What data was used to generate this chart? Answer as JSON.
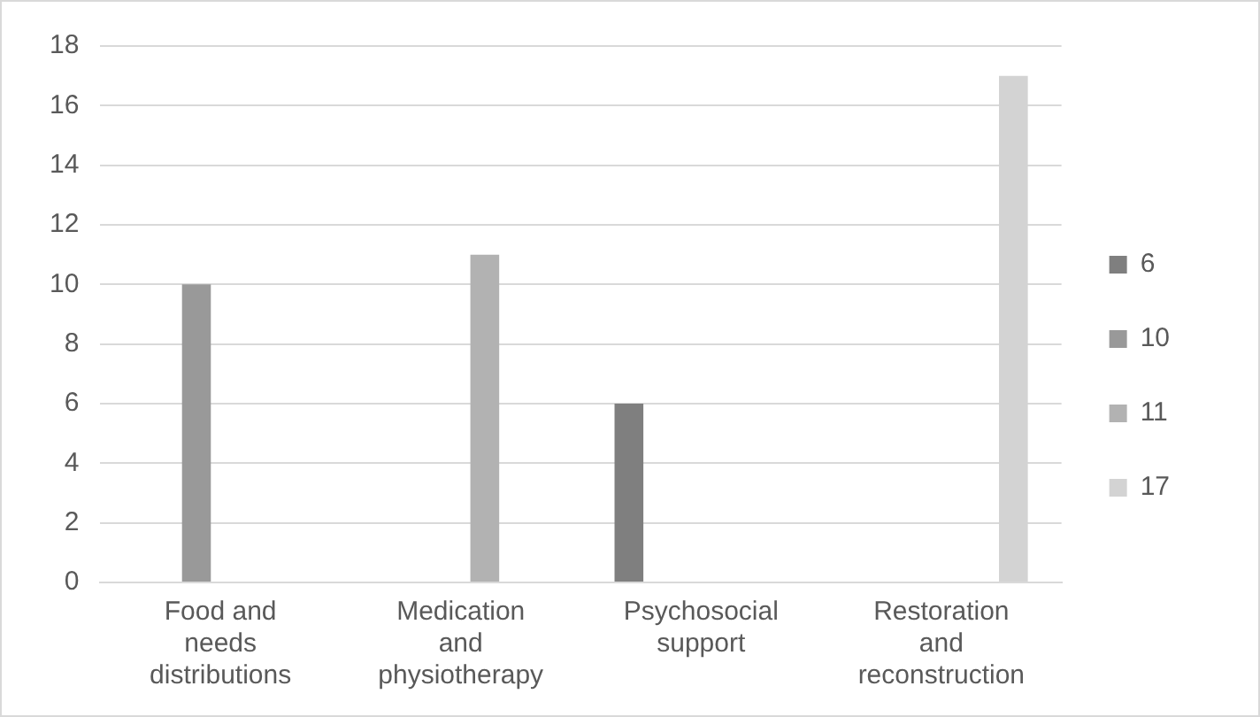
{
  "chart_data": {
    "type": "bar",
    "categories": [
      "Food and needs distributions",
      "Medication and physiotherapy",
      "Psychosocial support",
      "Restoration and reconstruction"
    ],
    "series": [
      {
        "name": "6",
        "color": "#7f7f7f",
        "values": [
          null,
          null,
          6,
          null
        ]
      },
      {
        "name": "10",
        "color": "#999999",
        "values": [
          10,
          null,
          null,
          null
        ]
      },
      {
        "name": "11",
        "color": "#b2b2b2",
        "values": [
          null,
          11,
          null,
          null
        ]
      },
      {
        "name": "17",
        "color": "#d3d3d3",
        "values": [
          null,
          null,
          null,
          17
        ]
      }
    ],
    "ylim": [
      0,
      18
    ],
    "yticks": [
      0,
      2,
      4,
      6,
      8,
      10,
      12,
      14,
      16,
      18
    ],
    "grid": "y",
    "legend": "right"
  }
}
